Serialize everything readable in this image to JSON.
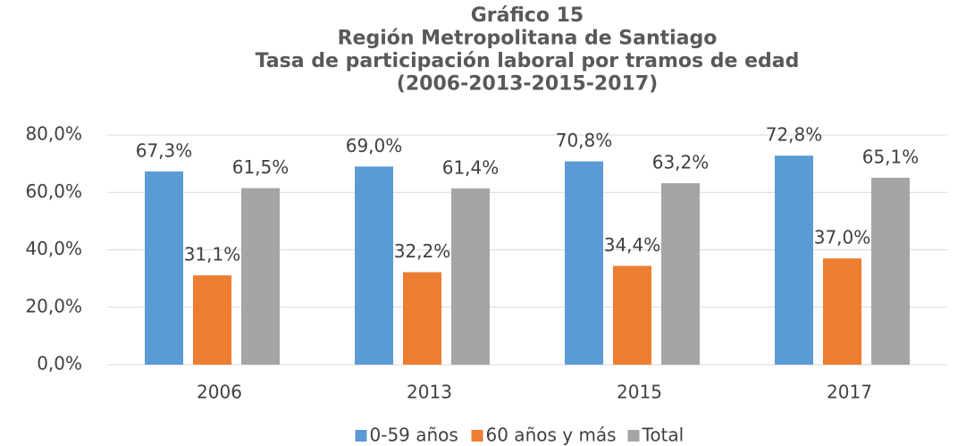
{
  "chart_data": {
    "type": "bar",
    "title": [
      "Gráfico 15",
      "Región Metropolitana de Santiago",
      "Tasa de participación laboral por tramos de edad",
      "(2006-2013-2015-2017)"
    ],
    "categories": [
      "2006",
      "2013",
      "2015",
      "2017"
    ],
    "series": [
      {
        "name": "0-59 años",
        "color": "#5b9bd5",
        "values": [
          67.3,
          69.0,
          70.8,
          72.8
        ],
        "value_labels": [
          "67,3%",
          "69,0%",
          "70,8%",
          "72,8%"
        ]
      },
      {
        "name": "60 años y más",
        "color": "#ed7d31",
        "values": [
          31.1,
          32.2,
          34.4,
          37.0
        ],
        "value_labels": [
          "31,1%",
          "32,2%",
          "34,4%",
          "37,0%"
        ]
      },
      {
        "name": "Total",
        "color": "#a5a5a5",
        "values": [
          61.5,
          61.4,
          63.2,
          65.1
        ],
        "value_labels": [
          "61,5%",
          "61,4%",
          "63,2%",
          "65,1%"
        ]
      }
    ],
    "ylim": [
      0,
      80
    ],
    "yticks": [
      {
        "value": 0,
        "label": "0,0%"
      },
      {
        "value": 20,
        "label": "20,0%"
      },
      {
        "value": 40,
        "label": "40,0%"
      },
      {
        "value": 60,
        "label": "60,0%"
      },
      {
        "value": 80,
        "label": "80,0%"
      }
    ],
    "grid": true,
    "legend": "bottom"
  }
}
